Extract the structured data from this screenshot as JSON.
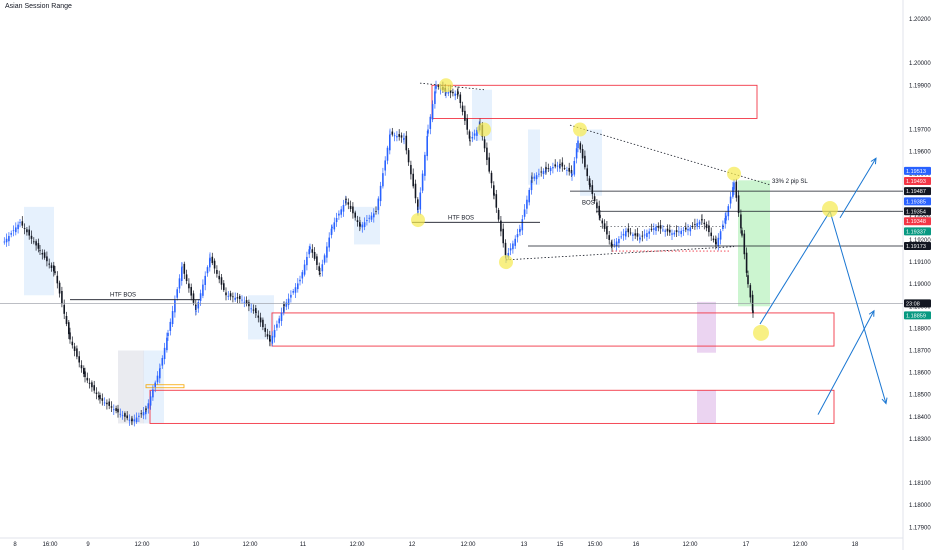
{
  "chart_title": "Asian Session Range",
  "colors": {
    "up": "#2962ff",
    "down": "#131722",
    "zone": "#f23645",
    "arrow": "#1976d2",
    "highlight": "#f5e94e",
    "session": "#d6e7fb",
    "green_zone": "#bff3c4",
    "purple_zone": "#e6c9ee"
  },
  "chart_data": {
    "type": "candlestick",
    "title": "",
    "y_range": [
      1.17845,
      1.20345
    ],
    "y_ticks": [
      "1.20200",
      "1.20000",
      "1.19900",
      "1.19700",
      "1.19600",
      "1.19500",
      "1.19300",
      "1.19200",
      "1.19100",
      "1.19000",
      "1.18900",
      "1.18800",
      "1.18700",
      "1.18600",
      "1.18500",
      "1.18400",
      "1.18300",
      "1.18100",
      "1.18000",
      "1.17900"
    ],
    "x_ticks": [
      "8",
      "16:00",
      "9",
      "12:00",
      "10",
      "12:00",
      "11",
      "12:00",
      "12",
      "12:00",
      "13",
      "15",
      "15:00",
      "16",
      "12:00",
      "17",
      "12:00",
      "18"
    ],
    "right_price_labels": [
      {
        "text": "1.19513",
        "price": 1.19513,
        "color": "#2962ff"
      },
      {
        "text": "1.19493",
        "price": 1.19467,
        "color": "#f23645"
      },
      {
        "text": "1.19487",
        "price": 1.19421,
        "color": "#131722"
      },
      {
        "text": "1.19385",
        "price": 1.19375,
        "color": "#2962ff"
      },
      {
        "text": "1.19354",
        "price": 1.1933,
        "color": "#131722"
      },
      {
        "text": "1.19348",
        "price": 1.19285,
        "color": "#f23645"
      },
      {
        "text": "1.19337",
        "price": 1.19239,
        "color": "#089981"
      },
      {
        "text": "1.19173",
        "price": 1.19173,
        "color": "#131722"
      },
      {
        "text": "23:08",
        "price": 1.18913,
        "color": "#131722"
      },
      {
        "text": "1.18859",
        "price": 1.18859,
        "color": "#089981"
      }
    ],
    "annotations": {
      "htf_bos_left": "HTF BOS",
      "htf_bos_mid": "HTF BOS",
      "bos_small": "BOS",
      "sl_note": "33% 2 pip SL"
    }
  }
}
